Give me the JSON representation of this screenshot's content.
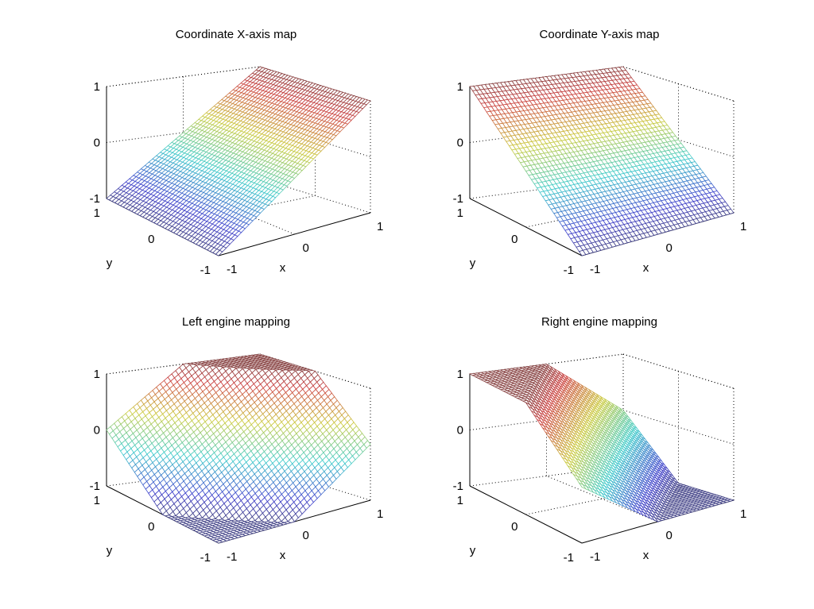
{
  "figure": {
    "background": "#ffffff"
  },
  "chart_data": [
    {
      "type": "surface",
      "id": "x-map",
      "title": "Coordinate X-axis map",
      "function": "z = x",
      "xlabel": "x",
      "ylabel": "y",
      "zlabel": "",
      "xlim": [
        -1,
        1
      ],
      "ylim": [
        -1,
        1
      ],
      "zlim": [
        -1,
        1
      ],
      "xticks": [
        "-1",
        "0",
        "1"
      ],
      "yticks": [
        "-1",
        "0",
        "1"
      ],
      "zticks": [
        "-1",
        "0",
        "1"
      ],
      "grid": true,
      "colormap": "jet",
      "mesh_points_per_axis": 41,
      "sample_values": {
        "x": [
          -1,
          -0.5,
          0,
          0.5,
          1
        ],
        "y": [
          -1,
          -0.5,
          0,
          0.5,
          1
        ],
        "z": [
          [
            -1,
            -0.5,
            0,
            0.5,
            1
          ],
          [
            -1,
            -0.5,
            0,
            0.5,
            1
          ],
          [
            -1,
            -0.5,
            0,
            0.5,
            1
          ],
          [
            -1,
            -0.5,
            0,
            0.5,
            1
          ],
          [
            -1,
            -0.5,
            0,
            0.5,
            1
          ]
        ]
      }
    },
    {
      "type": "surface",
      "id": "y-map",
      "title": "Coordinate Y-axis map",
      "function": "z = y",
      "xlabel": "x",
      "ylabel": "y",
      "zlabel": "",
      "xlim": [
        -1,
        1
      ],
      "ylim": [
        -1,
        1
      ],
      "zlim": [
        -1,
        1
      ],
      "xticks": [
        "-1",
        "0",
        "1"
      ],
      "yticks": [
        "-1",
        "0",
        "1"
      ],
      "zticks": [
        "-1",
        "0",
        "1"
      ],
      "grid": true,
      "colormap": "jet",
      "mesh_points_per_axis": 41,
      "sample_values": {
        "x": [
          -1,
          -0.5,
          0,
          0.5,
          1
        ],
        "y": [
          -1,
          -0.5,
          0,
          0.5,
          1
        ],
        "z": [
          [
            -1,
            -1,
            -1,
            -1,
            -1
          ],
          [
            -0.5,
            -0.5,
            -0.5,
            -0.5,
            -0.5
          ],
          [
            0,
            0,
            0,
            0,
            0
          ],
          [
            0.5,
            0.5,
            0.5,
            0.5,
            0.5
          ],
          [
            1,
            1,
            1,
            1,
            1
          ]
        ]
      }
    },
    {
      "type": "surface",
      "id": "left-engine",
      "title": "Left engine mapping",
      "function": "z = clamp(x + y, -1, 1)",
      "xlabel": "x",
      "ylabel": "y",
      "zlabel": "",
      "xlim": [
        -1,
        1
      ],
      "ylim": [
        -1,
        1
      ],
      "zlim": [
        -1,
        1
      ],
      "xticks": [
        "-1",
        "0",
        "1"
      ],
      "yticks": [
        "-1",
        "0",
        "1"
      ],
      "zticks": [
        "-1",
        "0",
        "1"
      ],
      "grid": true,
      "colormap": "jet",
      "mesh_points_per_axis": 41,
      "sample_values": {
        "x": [
          -1,
          -0.5,
          0,
          0.5,
          1
        ],
        "y": [
          -1,
          -0.5,
          0,
          0.5,
          1
        ],
        "z": [
          [
            -1,
            -1,
            -1,
            -0.5,
            0
          ],
          [
            -1,
            -1,
            -0.5,
            0,
            0.5
          ],
          [
            -1,
            -0.5,
            0,
            0.5,
            1
          ],
          [
            -0.5,
            0,
            0.5,
            1,
            1
          ],
          [
            0,
            0.5,
            1,
            1,
            1
          ]
        ]
      }
    },
    {
      "type": "surface",
      "id": "right-engine",
      "title": "Right engine mapping",
      "function": "z = clamp(y - x, -1, 1)",
      "xlabel": "x",
      "ylabel": "y",
      "zlabel": "",
      "xlim": [
        -1,
        1
      ],
      "ylim": [
        -1,
        1
      ],
      "zlim": [
        -1,
        1
      ],
      "xticks": [
        "-1",
        "0",
        "1"
      ],
      "yticks": [
        "-1",
        "0",
        "1"
      ],
      "zticks": [
        "-1",
        "0",
        "1"
      ],
      "grid": true,
      "colormap": "jet",
      "mesh_points_per_axis": 41,
      "sample_values": {
        "x": [
          -1,
          -0.5,
          0,
          0.5,
          1
        ],
        "y": [
          -1,
          -0.5,
          0,
          0.5,
          1
        ],
        "z": [
          [
            0,
            -0.5,
            -1,
            -1,
            -1
          ],
          [
            0.5,
            0,
            -0.5,
            -1,
            -1
          ],
          [
            1,
            0.5,
            0,
            -0.5,
            -1
          ],
          [
            1,
            1,
            0.5,
            0,
            -0.5
          ],
          [
            1,
            1,
            1,
            0.5,
            0
          ]
        ]
      }
    }
  ]
}
